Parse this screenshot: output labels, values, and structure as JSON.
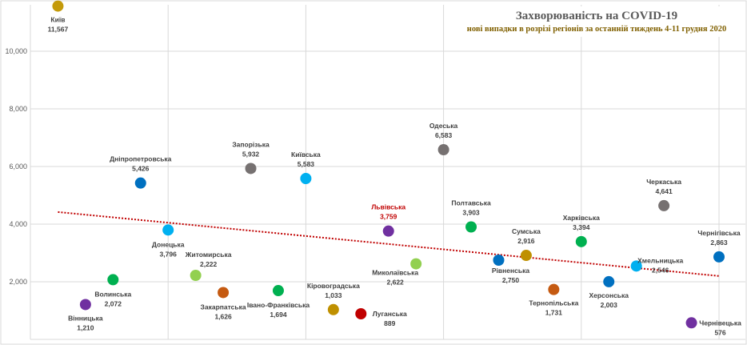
{
  "chart_data": {
    "type": "scatter",
    "title": "Захворюваність на COVID-19",
    "subtitle": "нові випадки в розрізі регіонів за останній тиждень 4-11 грудня 2020",
    "xlim": [
      0,
      25
    ],
    "ylim": [
      0,
      11800
    ],
    "yticks": [
      2000,
      4000,
      6000,
      8000,
      10000
    ],
    "ytick_labels": [
      "2,000",
      "4,000",
      "6,000",
      "8,000",
      "10,000"
    ],
    "grid": true,
    "points": [
      {
        "x": 1,
        "name": "Київ",
        "value": 11567,
        "label": "11,567",
        "color": "#c49a0a"
      },
      {
        "x": 2,
        "name": "Вінницька",
        "value": 1210,
        "label": "1,210",
        "color": "#7030a0"
      },
      {
        "x": 3,
        "name": "Волинська",
        "value": 2072,
        "label": "2,072",
        "color": "#00b050"
      },
      {
        "x": 4,
        "name": "Дніпропетровська",
        "value": 5426,
        "label": "5,426",
        "color": "#0070c0"
      },
      {
        "x": 5,
        "name": "Донецька",
        "value": 3796,
        "label": "3,796",
        "color": "#00b0f0"
      },
      {
        "x": 6,
        "name": "Житомирська",
        "value": 2222,
        "label": "2,222",
        "color": "#92d050"
      },
      {
        "x": 7,
        "name": "Закарпатська",
        "value": 1626,
        "label": "1,626",
        "color": "#c55a11"
      },
      {
        "x": 8,
        "name": "Запорізька",
        "value": 5932,
        "label": "5,932",
        "color": "#767171"
      },
      {
        "x": 9,
        "name": "Івано-Франківська",
        "value": 1694,
        "label": "1,694",
        "color": "#00b050"
      },
      {
        "x": 10,
        "name": "Київська",
        "value": 5583,
        "label": "5,583",
        "color": "#00b0f0"
      },
      {
        "x": 11,
        "name": "Кіровоградська",
        "value": 1033,
        "label": "1,033",
        "color": "#bf9000"
      },
      {
        "x": 12,
        "name": "Луганська",
        "value": 889,
        "label": "889",
        "color": "#c00000"
      },
      {
        "x": 13,
        "name": "Львівська",
        "value": 3759,
        "label": "3,759",
        "color": "#7030a0",
        "label_color": "#c00000"
      },
      {
        "x": 14,
        "name": "Миколаївська",
        "value": 2622,
        "label": "2,622",
        "color": "#92d050"
      },
      {
        "x": 15,
        "name": "Одеська",
        "value": 6583,
        "label": "6,583",
        "color": "#767171"
      },
      {
        "x": 16,
        "name": "Полтавська",
        "value": 3903,
        "label": "3,903",
        "color": "#00b050"
      },
      {
        "x": 17,
        "name": "Рівненська",
        "value": 2750,
        "label": "2,750",
        "color": "#0070c0"
      },
      {
        "x": 18,
        "name": "Сумська",
        "value": 2916,
        "label": "2,916",
        "color": "#bf9000"
      },
      {
        "x": 19,
        "name": "Тернопільська",
        "value": 1731,
        "label": "1,731",
        "color": "#c55a11"
      },
      {
        "x": 20,
        "name": "Харківська",
        "value": 3394,
        "label": "3,394",
        "color": "#00b050"
      },
      {
        "x": 21,
        "name": "Херсонська",
        "value": 2003,
        "label": "2,003",
        "color": "#0070c0"
      },
      {
        "x": 22,
        "name": "Хмельницька",
        "value": 2546,
        "label": "2,546",
        "color": "#00b0f0"
      },
      {
        "x": 23,
        "name": "Черкаська",
        "value": 4641,
        "label": "4,641",
        "color": "#767171"
      },
      {
        "x": 24,
        "name": "Чернівецька",
        "value": 576,
        "label": "576",
        "color": "#7030a0"
      },
      {
        "x": 25,
        "name": "Чернігівська",
        "value": 2863,
        "label": "2,863",
        "color": "#0070c0"
      }
    ],
    "trendline": {
      "type": "linear",
      "x": [
        1,
        25
      ],
      "y": [
        4420,
        2200
      ],
      "color": "#c00000"
    }
  }
}
